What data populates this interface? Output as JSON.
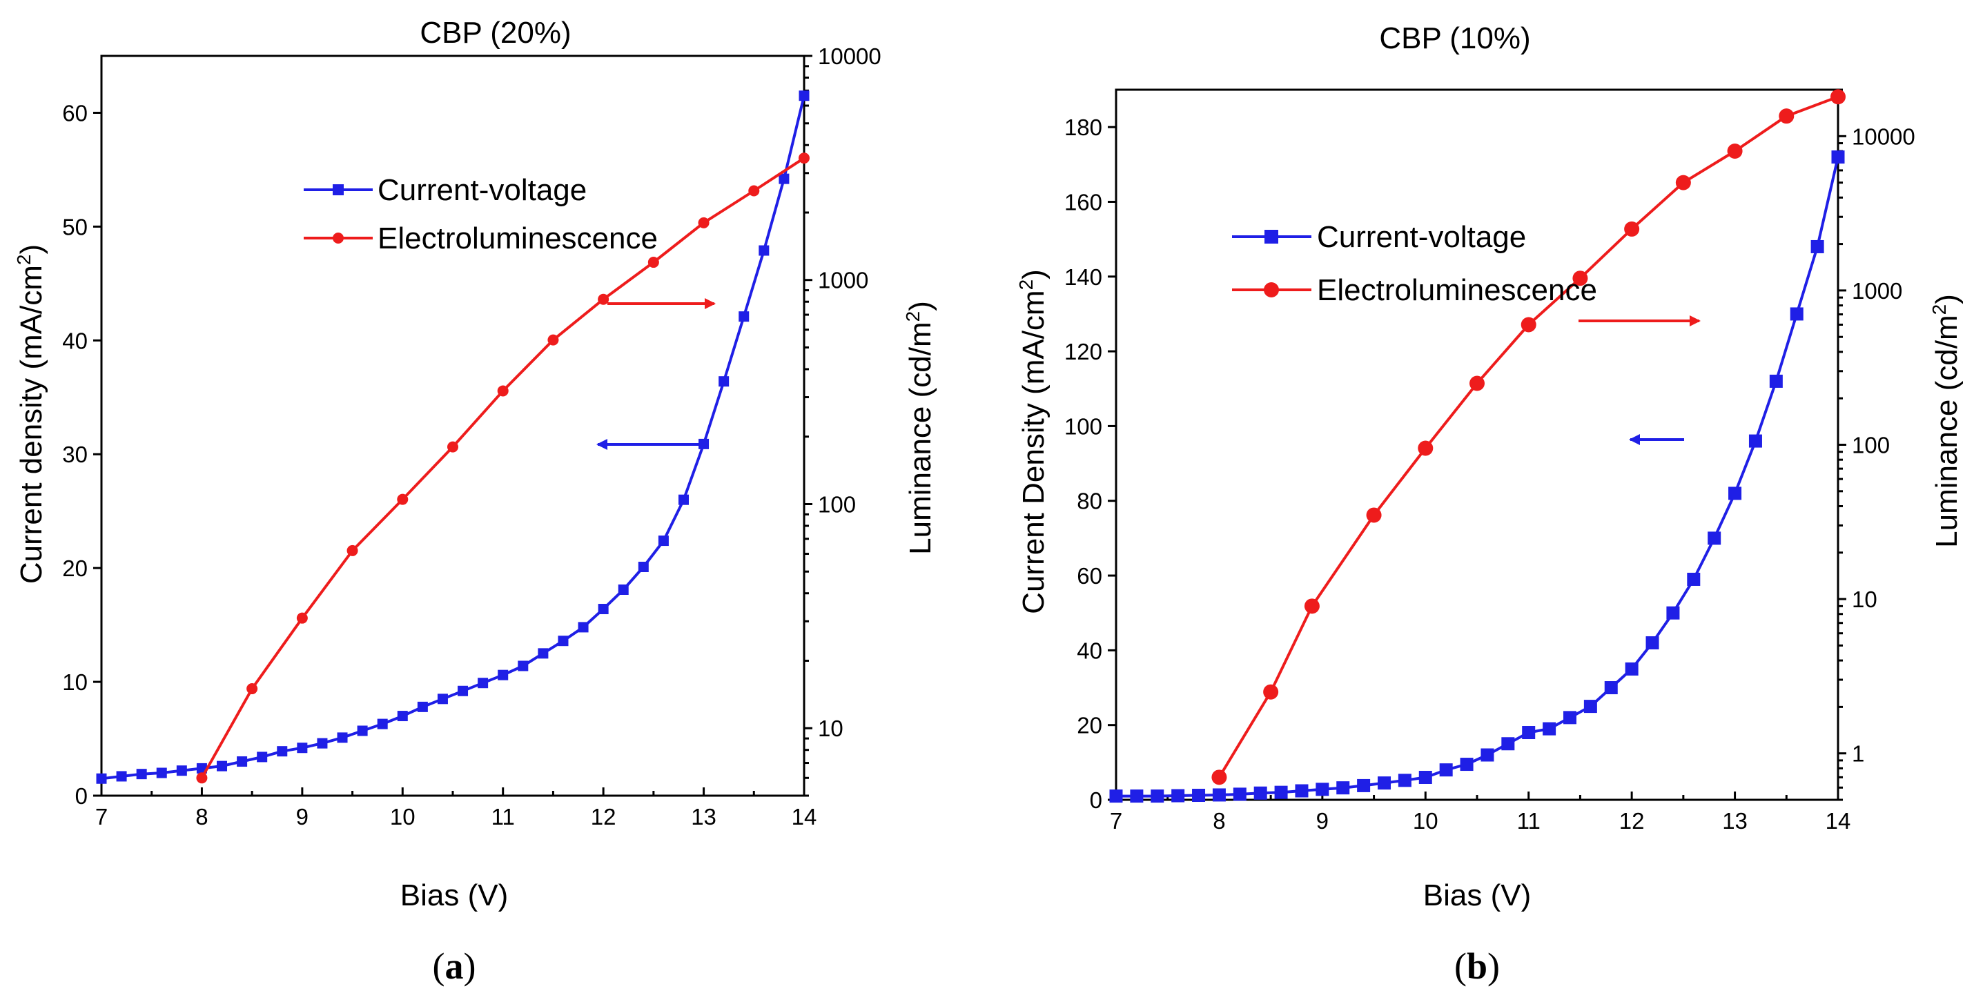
{
  "chart_data": [
    {
      "panel_label": "a",
      "type": "line",
      "title": "CBP (20%)",
      "xlabel": "Bias (V)",
      "ylabel": "Current density (mA/cm",
      "ylabel_sup": "2",
      "ylabel_close": ")",
      "y2label": "Luminance (cd/m",
      "y2label_sup": "2",
      "y2label_close": ")",
      "xlim": [
        7,
        14
      ],
      "ylim": [
        0,
        65
      ],
      "y2lim": [
        5,
        10000
      ],
      "y2scale": "log",
      "xticks": [
        "7",
        "8",
        "9",
        "10",
        "11",
        "12",
        "13",
        "14"
      ],
      "yticks": [
        "0",
        "10",
        "20",
        "30",
        "40",
        "50",
        "60"
      ],
      "y2ticks": [
        "10",
        "100",
        "1000",
        "10000"
      ],
      "legend_position": "upper-middle",
      "series": [
        {
          "name": "Current-voltage",
          "axis": "left",
          "color": "#1f1fe6",
          "marker": "square",
          "x": [
            7.0,
            7.2,
            7.4,
            7.6,
            7.8,
            8.0,
            8.2,
            8.4,
            8.6,
            8.8,
            9.0,
            9.2,
            9.4,
            9.6,
            9.8,
            10.0,
            10.2,
            10.4,
            10.6,
            10.8,
            11.0,
            11.2,
            11.4,
            11.6,
            11.8,
            12.0,
            12.2,
            12.4,
            12.6,
            12.8,
            13.0,
            13.2,
            13.4,
            13.6,
            13.8,
            14.0
          ],
          "values": [
            1.5,
            1.7,
            1.9,
            2.0,
            2.2,
            2.4,
            2.6,
            3.0,
            3.4,
            3.9,
            4.2,
            4.6,
            5.1,
            5.7,
            6.3,
            7.0,
            7.8,
            8.5,
            9.2,
            9.9,
            10.6,
            11.4,
            12.5,
            13.6,
            14.8,
            16.4,
            18.1,
            20.1,
            22.4,
            26.0,
            30.9,
            36.4,
            42.1,
            47.9,
            54.2,
            61.5
          ]
        },
        {
          "name": "Electroluminescence",
          "axis": "right",
          "color": "#ee1c1c",
          "marker": "circle",
          "x": [
            8.0,
            8.5,
            9.0,
            9.5,
            10.0,
            10.5,
            11.0,
            11.5,
            12.0,
            12.5,
            13.0,
            13.5,
            14.0
          ],
          "values": [
            6,
            15,
            31,
            62,
            105,
            180,
            320,
            540,
            820,
            1200,
            1800,
            2500,
            3500
          ]
        }
      ],
      "annotations": [
        {
          "type": "arrow",
          "direction": "right",
          "color": "#ee1c1c",
          "points_to": "right-axis"
        },
        {
          "type": "arrow",
          "direction": "left",
          "color": "#1f1fe6",
          "points_to": "left-axis"
        }
      ]
    },
    {
      "panel_label": "b",
      "type": "line",
      "title": "CBP (10%)",
      "xlabel": "Bias (V)",
      "ylabel": "Current Density (mA/cm",
      "ylabel_sup": "2",
      "ylabel_close": ")",
      "y2label": "Luminance (cd/m",
      "y2label_sup": "2",
      "y2label_close": ")",
      "xlim": [
        7,
        14
      ],
      "ylim": [
        0,
        190
      ],
      "y2lim": [
        0.5,
        20000
      ],
      "y2scale": "log",
      "xticks": [
        "7",
        "8",
        "9",
        "10",
        "11",
        "12",
        "13",
        "14"
      ],
      "yticks": [
        "0",
        "20",
        "40",
        "60",
        "80",
        "100",
        "120",
        "140",
        "160",
        "180"
      ],
      "y2ticks": [
        "1",
        "10",
        "100",
        "1000",
        "10000"
      ],
      "legend_position": "upper-middle",
      "series": [
        {
          "name": "Current-voltage",
          "axis": "left",
          "color": "#1f1fe6",
          "marker": "square",
          "x": [
            7.0,
            7.2,
            7.4,
            7.6,
            7.8,
            8.0,
            8.2,
            8.4,
            8.6,
            8.8,
            9.0,
            9.2,
            9.4,
            9.6,
            9.8,
            10.0,
            10.2,
            10.4,
            10.6,
            10.8,
            11.0,
            11.2,
            11.4,
            11.6,
            11.8,
            12.0,
            12.2,
            12.4,
            12.6,
            12.8,
            13.0,
            13.2,
            13.4,
            13.6,
            13.8,
            14.0
          ],
          "values": [
            1,
            1,
            1,
            1.1,
            1.2,
            1.3,
            1.5,
            1.8,
            2.0,
            2.4,
            2.8,
            3.2,
            3.8,
            4.5,
            5.2,
            6,
            8,
            9.5,
            12,
            15,
            18,
            19,
            22,
            25,
            30,
            35,
            42,
            50,
            59,
            70,
            82,
            96,
            112,
            130,
            148,
            172
          ]
        },
        {
          "name": "Electroluminescence",
          "axis": "right",
          "color": "#ee1c1c",
          "marker": "circle",
          "x": [
            8.0,
            8.5,
            8.9,
            9.5,
            10.0,
            10.5,
            11.0,
            11.5,
            12.0,
            12.5,
            13.0,
            13.5,
            14.0
          ],
          "values": [
            0.7,
            2.5,
            9,
            35,
            95,
            250,
            600,
            1200,
            2500,
            5000,
            8000,
            13500,
            18000
          ]
        }
      ],
      "annotations": [
        {
          "type": "arrow",
          "direction": "right",
          "color": "#ee1c1c",
          "points_to": "right-axis"
        },
        {
          "type": "arrow",
          "direction": "left",
          "color": "#1f1fe6",
          "points_to": "left-axis"
        }
      ]
    }
  ]
}
